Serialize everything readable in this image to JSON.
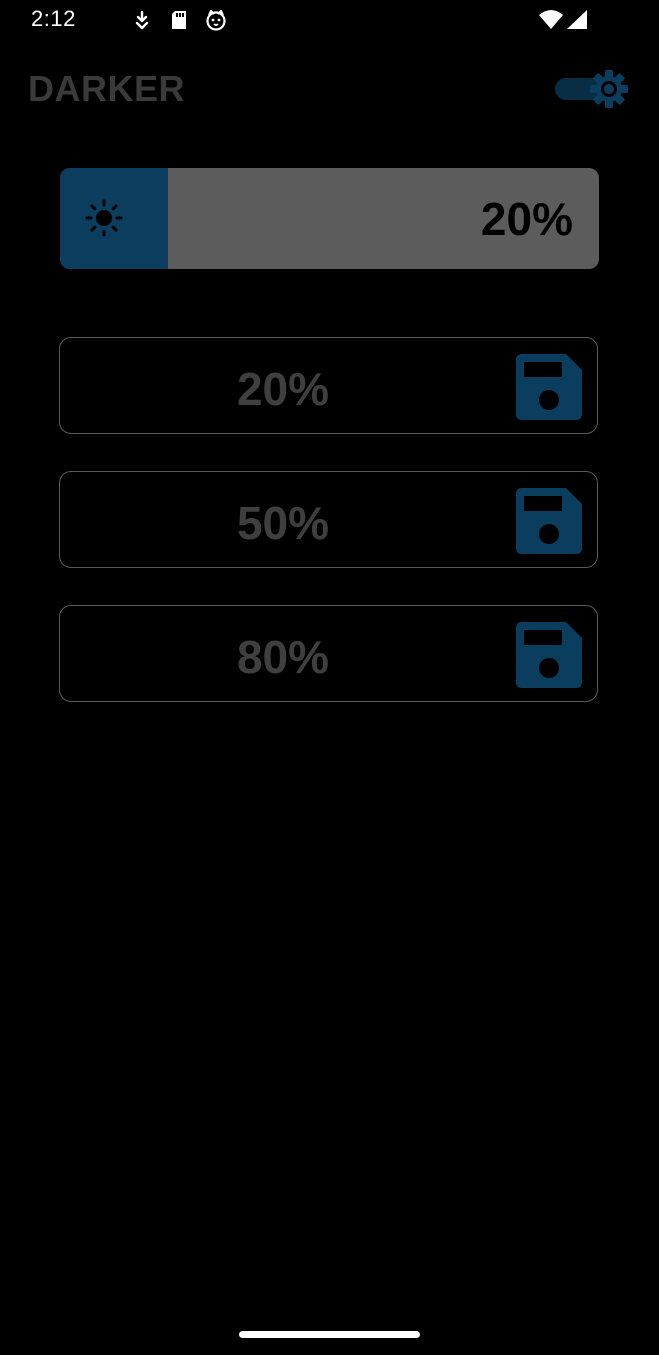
{
  "status_bar": {
    "time": "2:12",
    "left_icons": [
      "download-arrow-icon",
      "sd-card-icon",
      "cat-face-icon"
    ],
    "right_icons": [
      "wifi-icon",
      "cell-signal-icon"
    ]
  },
  "header": {
    "title": "DARKER",
    "toggle": {
      "state": "on",
      "icon": "gear-icon",
      "color": "#0b3d5e"
    }
  },
  "brightness": {
    "value": 0.2,
    "label": "20%",
    "icon": "sun-icon",
    "fill_color": "#0b3d5e",
    "track_color": "#5c5c5c"
  },
  "presets": [
    {
      "label": "20%",
      "icon": "save-icon"
    },
    {
      "label": "50%",
      "icon": "save-icon"
    },
    {
      "label": "80%",
      "icon": "save-icon"
    }
  ],
  "colors": {
    "background": "#000000",
    "accent": "#0b3d5e",
    "muted_text": "#3f3f3f"
  }
}
